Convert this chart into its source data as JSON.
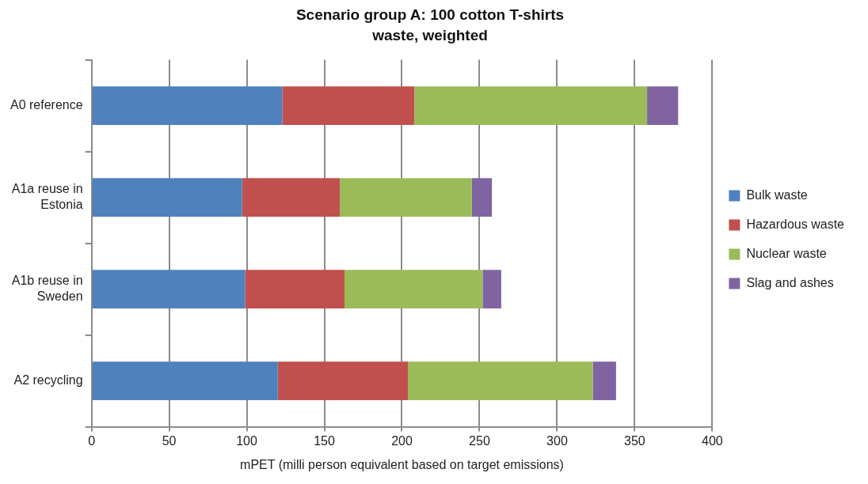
{
  "chart_data": {
    "type": "bar",
    "orientation": "horizontal",
    "stacked": true,
    "title": "Scenario group A: 100 cotton T-shirts",
    "subtitle": "waste, weighted",
    "xlabel": "mPET (milli person equivalent based on target emissions)",
    "categories": [
      "A0 reference",
      "A1a reuse in Estonia",
      "A1b reuse in Sweden",
      "A2 recycling"
    ],
    "series": [
      {
        "name": "Bulk waste",
        "color": "#4f81bd",
        "values": [
          123,
          97,
          99,
          120
        ]
      },
      {
        "name": "Hazardous waste",
        "color": "#c0504d",
        "values": [
          85,
          63,
          64,
          84
        ]
      },
      {
        "name": "Nuclear waste",
        "color": "#9bbb59",
        "values": [
          150,
          85,
          89,
          119
        ]
      },
      {
        "name": "Slag and ashes",
        "color": "#8064a2",
        "values": [
          20,
          13,
          12,
          15
        ]
      }
    ],
    "xlim": [
      0,
      400
    ],
    "xticks": [
      0,
      50,
      100,
      150,
      200,
      250,
      300,
      350,
      400
    ],
    "grid": "x",
    "legend": "right"
  }
}
